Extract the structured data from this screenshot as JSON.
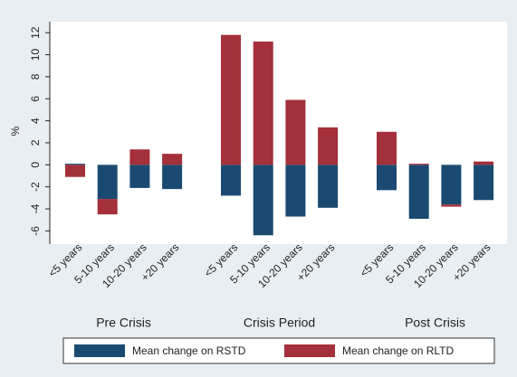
{
  "chart_data": {
    "type": "bar",
    "stacked": true,
    "y_label": "%",
    "groups": [
      "Pre Crisis",
      "Crisis Period",
      "Post Crisis"
    ],
    "categories": [
      "<5 years",
      "5-10 years",
      "10-20 years",
      "+20 years",
      "<5 years",
      "5-10 years",
      "10-20 years",
      "+20 years",
      "<5 years",
      "5-10 years",
      "10-20 years",
      "+20 years"
    ],
    "series": [
      {
        "name": "Mean change on RSTD",
        "color": "#1a4a72",
        "values": [
          0.1,
          -3.1,
          -2.1,
          -2.2,
          -2.8,
          -6.4,
          -4.7,
          -3.9,
          -2.3,
          -4.9,
          -3.6,
          -3.2
        ]
      },
      {
        "name": "Mean change on RLTD",
        "color": "#a3303a",
        "values": [
          -1.1,
          -1.4,
          1.4,
          1.0,
          11.8,
          11.2,
          5.9,
          3.4,
          3.0,
          0.1,
          -0.2,
          0.3
        ]
      }
    ],
    "ylim": [
      -7.2,
      13
    ],
    "yticks": [
      -6,
      -4,
      -2,
      0,
      2,
      4,
      6,
      8,
      10,
      12
    ],
    "legend": "bottom"
  }
}
